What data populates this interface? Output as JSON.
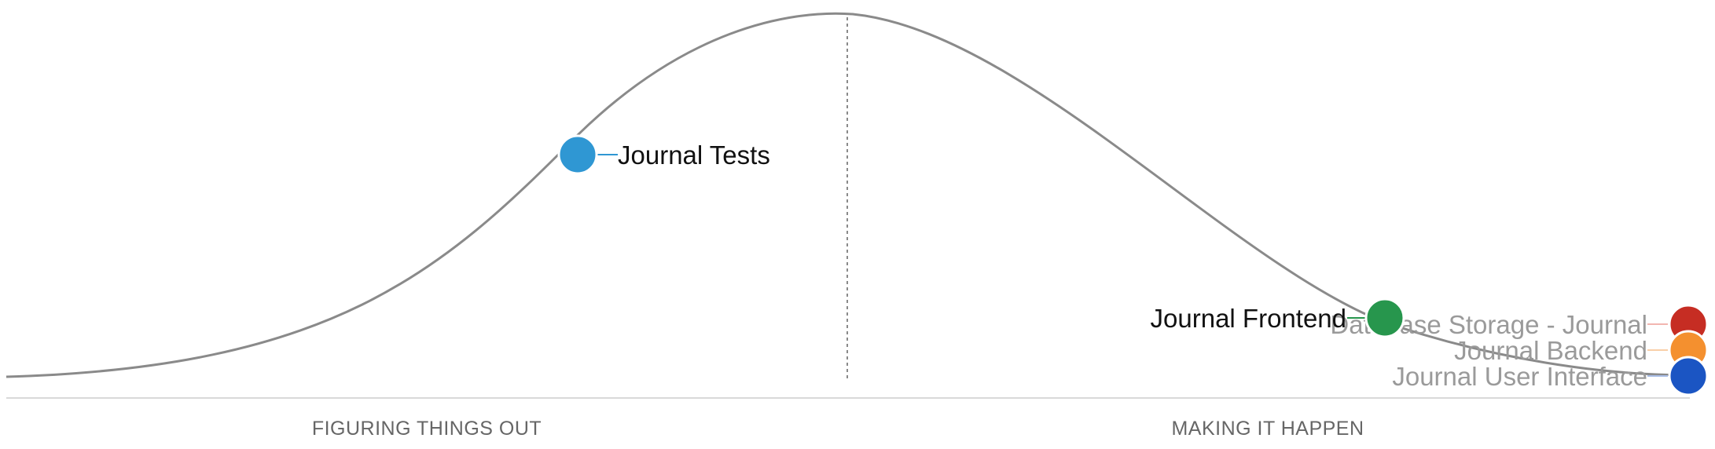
{
  "phases": {
    "left": "FIGURING THINGS OUT",
    "right": "MAKING IT HAPPEN"
  },
  "colors": {
    "curve": "#8a8a8a",
    "baseline": "#d9d9d9",
    "divider": "#8a8a8a",
    "label_active": "#111111",
    "label_faded": "#9a9a9a"
  },
  "scopes": [
    {
      "name": "Journal Tests",
      "color": "#2f97d3",
      "label_side": "right",
      "faded": false
    },
    {
      "name": "Journal Frontend",
      "color": "#27964d",
      "label_side": "left",
      "faded": false
    },
    {
      "name": "Database Storage - Journal",
      "color": "#c62d23",
      "label_side": "left",
      "faded": true
    },
    {
      "name": "Journal Backend",
      "color": "#f4902f",
      "label_side": "left",
      "faded": true
    },
    {
      "name": "Journal User Interface",
      "color": "#1b55c3",
      "label_side": "left",
      "faded": true
    }
  ]
}
